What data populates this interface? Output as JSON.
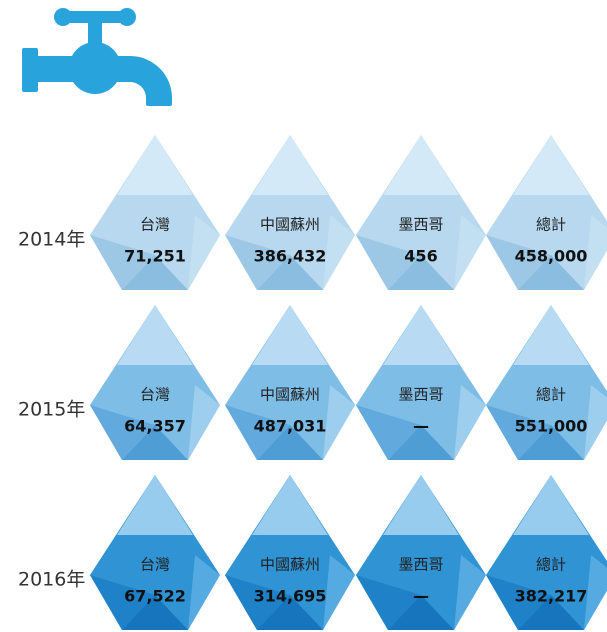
{
  "rows": [
    {
      "year": "2014年",
      "cells": [
        {
          "label": "台灣",
          "value": "71,251"
        },
        {
          "label": "中國蘇州",
          "value": "386,432"
        },
        {
          "label": "墨西哥",
          "value": "456"
        },
        {
          "label": "總計",
          "value": "458,000"
        }
      ]
    },
    {
      "year": "2015年",
      "cells": [
        {
          "label": "台灣",
          "value": "64,357"
        },
        {
          "label": "中國蘇州",
          "value": "487,031"
        },
        {
          "label": "墨西哥",
          "value": "—"
        },
        {
          "label": "總計",
          "value": "551,000"
        }
      ]
    },
    {
      "year": "2016年",
      "cells": [
        {
          "label": "台灣",
          "value": "67,522"
        },
        {
          "label": "中國蘇州",
          "value": "314,695"
        },
        {
          "label": "墨西哥",
          "value": "—"
        },
        {
          "label": "總計",
          "value": "382,217"
        }
      ]
    }
  ]
}
